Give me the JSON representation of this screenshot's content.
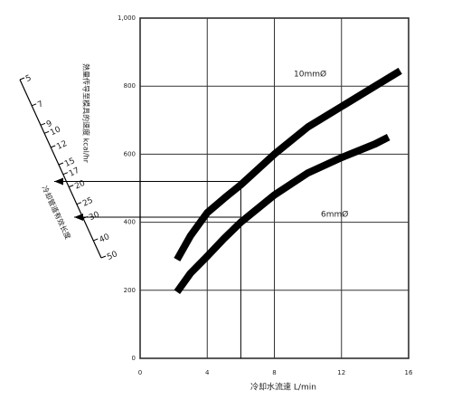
{
  "chart_data": {
    "type": "line",
    "x_label": "冷却水流速  L/min",
    "y_label": "熱量传导至模具的速度 kcal/hr",
    "xlim": [
      0,
      16
    ],
    "xticks": [
      0,
      4,
      8,
      12,
      16
    ],
    "ylim": [
      0,
      1000
    ],
    "yticks": [
      0,
      200,
      400,
      600,
      800,
      {
        "value": 1000,
        "label": "1,000"
      }
    ],
    "grid": true,
    "series": [
      {
        "name": "10mmØ",
        "color": "#000000",
        "x": [
          2.2,
          3,
          4,
          5,
          6,
          8,
          10,
          12,
          14,
          15.5
        ],
        "values": [
          290,
          360,
          428,
          470,
          510,
          600,
          680,
          740,
          800,
          845
        ]
      },
      {
        "name": "6mmØ",
        "color": "#000000",
        "x": [
          2.2,
          3,
          4,
          5,
          6,
          8,
          10,
          12,
          14,
          14.8
        ],
        "values": [
          195,
          250,
          300,
          352,
          400,
          480,
          545,
          590,
          630,
          650
        ]
      }
    ],
    "guides": {
      "x": 6,
      "y": [
        520,
        415
      ]
    },
    "scale": {
      "label": "冷却管道有效长度",
      "ticks": [
        5,
        7,
        9,
        10,
        12,
        15,
        17,
        20,
        25,
        30,
        40,
        50
      ]
    }
  }
}
